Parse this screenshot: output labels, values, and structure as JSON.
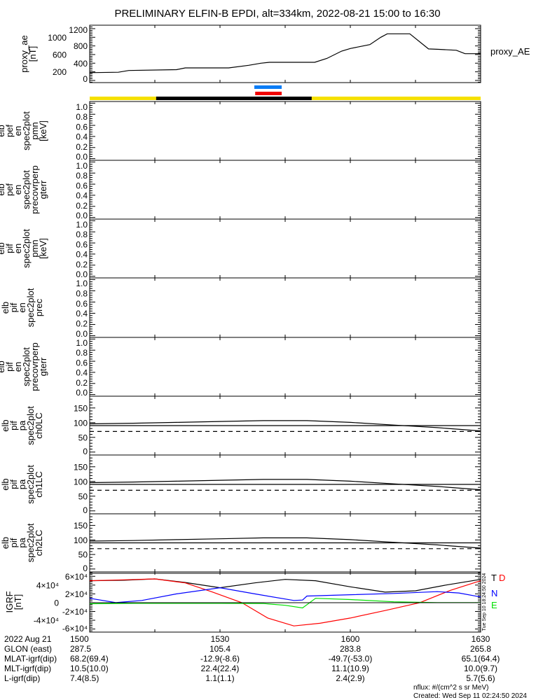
{
  "title": "PRELIMINARY ELFIN-B EPDI, alt=334km, 2022-08-21 15:00 to 16:30",
  "colors": {
    "yellow": "#f5e000",
    "black": "#000000",
    "blue": "#0a7cf5",
    "red": "#f00000",
    "igrf_T": "#000000",
    "igrf_D": "#ff0000",
    "igrf_N": "#0000ff",
    "igrf_E": "#00e000"
  },
  "time_range_min": [
    0,
    90
  ],
  "coverage_bars": {
    "science_blue": [
      37.9,
      44.2
    ],
    "science_red": [
      38.1,
      44.2
    ],
    "sunlight_black": [
      15.3,
      51.1
    ]
  },
  "chart_data": [
    {
      "id": "ae",
      "type": "line",
      "ylabel": [
        "proxy_ae",
        "[nT]"
      ],
      "legend": "proxy_AE",
      "yticks": [
        "0",
        "200",
        "400",
        "600",
        "800",
        "1000",
        "1200"
      ],
      "ylim": [
        -50,
        1280
      ],
      "series": [
        {
          "name": "proxy_AE",
          "x": [
            0,
            6.6,
            9,
            20,
            22,
            32,
            36.6,
            39.4,
            41.4,
            51.8,
            54.6,
            58,
            60,
            62,
            64.5,
            67,
            68.5,
            73.7,
            78,
            80.4,
            84.4,
            86.4,
            90
          ],
          "y": [
            180,
            190,
            230,
            250,
            290,
            290,
            350,
            400,
            420,
            420,
            510,
            680,
            740,
            780,
            830,
            1000,
            1080,
            1080,
            730,
            720,
            700,
            620,
            620
          ]
        }
      ]
    },
    {
      "id": "pef_pmn",
      "type": "line",
      "ylabel": [
        "elb",
        "pef",
        "en",
        "spec2plot",
        "pmn",
        "[keV]"
      ],
      "yticks": [
        "0.0",
        "0.2",
        "0.4",
        "0.6",
        "0.8",
        "1.0"
      ],
      "ylim": [
        -0.03,
        1.03
      ],
      "series": []
    },
    {
      "id": "pef_gterr",
      "type": "line",
      "ylabel": [
        "elb",
        "pef",
        "en",
        "spec2plot",
        "precovrperp",
        "gterr"
      ],
      "yticks": [
        "0.0",
        "0.2",
        "0.4",
        "0.6",
        "0.8",
        "1.0"
      ],
      "ylim": [
        -0.03,
        1.03
      ],
      "series": []
    },
    {
      "id": "pif_pmn",
      "type": "line",
      "ylabel": [
        "elb",
        "pif",
        "en",
        "spec2plot",
        "pmn",
        "[keV]"
      ],
      "yticks": [
        "0.0",
        "0.2",
        "0.4",
        "0.6",
        "0.8",
        "1.0"
      ],
      "ylim": [
        -0.03,
        1.03
      ],
      "series": []
    },
    {
      "id": "pif_prec",
      "type": "line",
      "ylabel": [
        "elb",
        "pif",
        "en",
        "spec2plot",
        "prec"
      ],
      "yticks": [
        "0.0",
        "0.2",
        "0.4",
        "0.6",
        "0.8",
        "1.0"
      ],
      "ylim": [
        -0.03,
        1.03
      ],
      "series": []
    },
    {
      "id": "pif_gterr",
      "type": "line",
      "ylabel": [
        "elb",
        "pif",
        "en",
        "spec2plot",
        "precovrperp",
        "gterr"
      ],
      "yticks": [
        "0.0",
        "0.2",
        "0.4",
        "0.6",
        "0.8",
        "1.0"
      ],
      "ylim": [
        -0.03,
        1.03
      ],
      "series": []
    },
    {
      "id": "pa_ch0",
      "type": "line",
      "ylabel": [
        "elb",
        "pif",
        "pa",
        "spec2plot",
        "ch0LC"
      ],
      "yticks": [
        "0",
        "50",
        "100",
        "150"
      ],
      "ylim": [
        -10,
        190
      ],
      "series": [
        {
          "name": "pa",
          "x": [
            0,
            10,
            20,
            30,
            40,
            50,
            60,
            70,
            80,
            90
          ],
          "y": [
            96,
            98,
            101,
            104,
            107,
            107,
            101,
            92,
            83,
            72
          ]
        },
        {
          "name": "90deg",
          "x": [
            0,
            90
          ],
          "y": [
            90,
            90
          ]
        },
        {
          "name": "losscone",
          "style": "dashed",
          "x": [
            0,
            90
          ],
          "y": [
            70,
            70
          ]
        }
      ]
    },
    {
      "id": "pa_ch1",
      "type": "line",
      "ylabel": [
        "elb",
        "pif",
        "pa",
        "spec2plot",
        "ch1LC"
      ],
      "yticks": [
        "0",
        "50",
        "100",
        "150"
      ],
      "ylim": [
        -10,
        190
      ],
      "series": [
        {
          "name": "pa",
          "x": [
            0,
            10,
            20,
            30,
            40,
            50,
            60,
            70,
            80,
            90
          ],
          "y": [
            96,
            98,
            101,
            104,
            107,
            107,
            101,
            92,
            83,
            72
          ]
        },
        {
          "name": "90deg",
          "x": [
            0,
            90
          ],
          "y": [
            90,
            90
          ]
        },
        {
          "name": "losscone",
          "style": "dashed",
          "x": [
            0,
            90
          ],
          "y": [
            70,
            70
          ]
        }
      ]
    },
    {
      "id": "pa_ch2",
      "type": "line",
      "ylabel": [
        "elb",
        "pif",
        "pa",
        "spec2plot",
        "ch2LC"
      ],
      "yticks": [
        "0",
        "50",
        "100",
        "150"
      ],
      "ylim": [
        -10,
        190
      ],
      "series": [
        {
          "name": "pa",
          "x": [
            0,
            10,
            20,
            30,
            40,
            50,
            60,
            70,
            80,
            90
          ],
          "y": [
            96,
            98,
            101,
            104,
            107,
            107,
            101,
            92,
            83,
            72
          ]
        },
        {
          "name": "90deg",
          "x": [
            0,
            90
          ],
          "y": [
            90,
            90
          ]
        },
        {
          "name": "losscone",
          "style": "dashed",
          "x": [
            0,
            90
          ],
          "y": [
            70,
            70
          ]
        }
      ]
    },
    {
      "id": "igrf",
      "type": "line",
      "ylabel": [
        "IGRF",
        "[nT]"
      ],
      "yticks": [
        "-6×10⁴",
        "-4×10⁴",
        "-2×10⁴",
        "0",
        "2×10⁴",
        "4×10⁴",
        "6×10⁴"
      ],
      "ytick_values": [
        -60000,
        -40000,
        -20000,
        0,
        20000,
        40000,
        60000
      ],
      "ylim": [
        -67000,
        70000
      ],
      "side_note": "Tue Sep 10 18:24:50 2024",
      "series": [
        {
          "name": "T",
          "color": "#000000",
          "x": [
            0,
            8,
            15,
            22,
            30,
            38,
            45,
            52,
            60,
            68,
            75,
            82,
            90
          ],
          "y": [
            50000,
            51000,
            54000,
            46000,
            34000,
            45000,
            53000,
            50000,
            36000,
            24000,
            27000,
            40000,
            53000
          ]
        },
        {
          "name": "D",
          "color": "#ff0000",
          "x": [
            0,
            8,
            15,
            22,
            28,
            35,
            41,
            47,
            53,
            60,
            68,
            76,
            83,
            90
          ],
          "y": [
            50000,
            52000,
            54000,
            45000,
            25000,
            0,
            -35000,
            -53000,
            -47000,
            -35000,
            -18000,
            0,
            28000,
            50000
          ]
        },
        {
          "name": "N",
          "color": "#0000ff",
          "x": [
            0,
            6,
            12,
            20,
            30,
            38,
            47,
            49,
            50,
            60,
            70,
            80,
            85,
            90
          ],
          "y": [
            10000,
            0,
            5000,
            20000,
            34000,
            20000,
            5000,
            6000,
            15000,
            18000,
            21000,
            25000,
            22000,
            13000
          ]
        },
        {
          "name": "E",
          "color": "#00e000",
          "x": [
            0,
            10,
            20,
            30,
            40,
            45,
            49,
            52,
            60,
            70,
            80,
            90
          ],
          "y": [
            -2500,
            -1500,
            -1500,
            -1500,
            -2000,
            -6000,
            -12000,
            10000,
            7000,
            2000,
            0,
            0
          ]
        }
      ]
    }
  ],
  "xaxis": {
    "rows": [
      {
        "label": "2022 Aug 21",
        "values": [
          "1500",
          "1530",
          "1600",
          "1630"
        ]
      },
      {
        "label": "GLON (east)",
        "values": [
          "287.5",
          "105.4",
          "283.8",
          "265.8"
        ]
      },
      {
        "label": "MLAT-igrf(dip)",
        "values": [
          "68.2(69.4)",
          "-12.9(-8.6)",
          "-49.7(-53.0)",
          "65.1(64.4)"
        ]
      },
      {
        "label": "MLT-igrf(dip)",
        "values": [
          "10.5(10.0)",
          "22.4(22.4)",
          "11.1(10.9)",
          "10.0(9.7)"
        ]
      },
      {
        "label": "L-igrf(dip)",
        "values": [
          "7.4(8.5)",
          "1.1(1.1)",
          "2.4(2.9)",
          "5.7(5.6)"
        ]
      }
    ],
    "tick_times_min": [
      0,
      30,
      60,
      90
    ]
  },
  "footer": {
    "units": "nflux: #/(cm^2 s sr MeV)",
    "created": "Created: Wed Sep 11 02:24:50 2024"
  }
}
